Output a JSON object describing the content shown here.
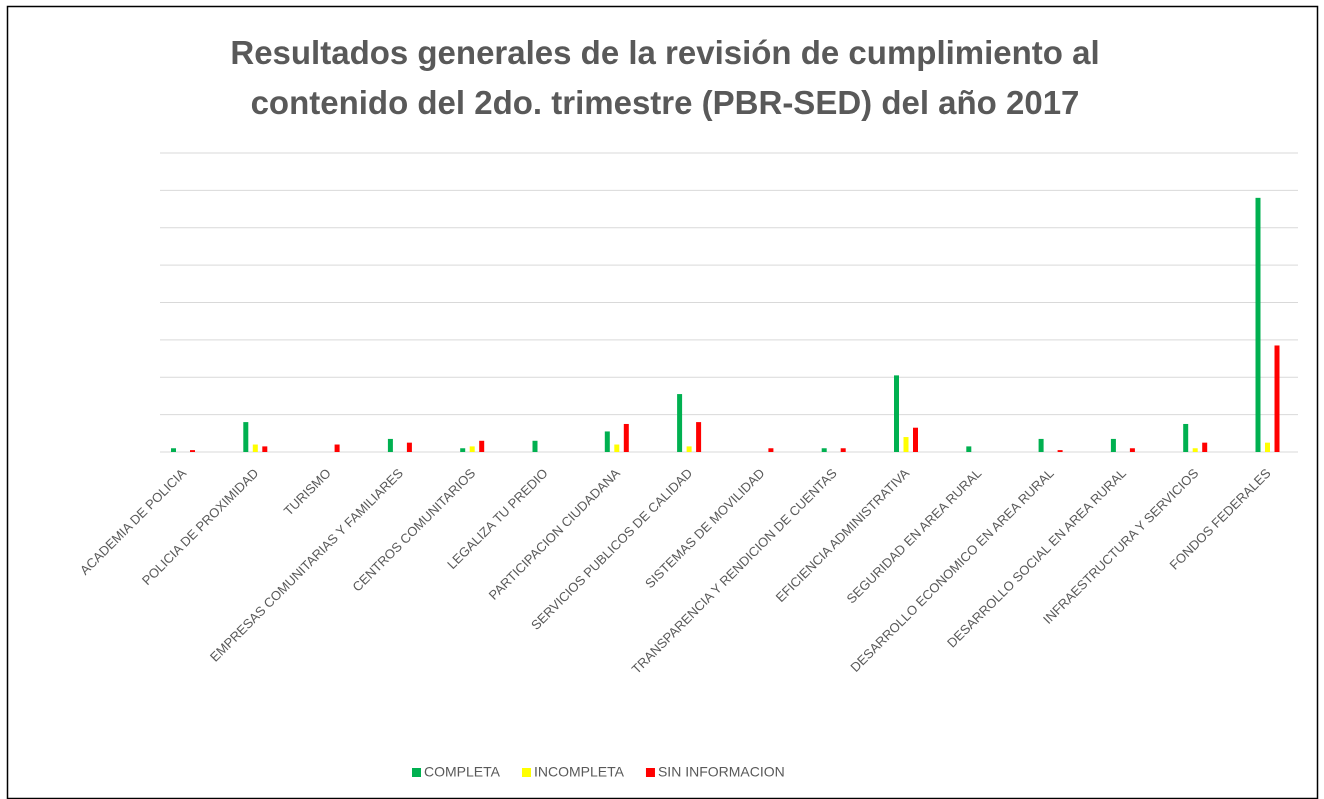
{
  "chart_data": {
    "type": "bar",
    "title": [
      "Resultados generales de la revisión de cumplimiento al",
      "contenido del 2do. trimestre (PBR-SED) del año 2017"
    ],
    "categories": [
      "ACADEMIA DE POLICIA",
      "POLICIA DE PROXIMIDAD",
      "TURISMO",
      "EMPRESAS COMUNITARIAS Y FAMILIARES",
      "CENTROS COMUNITARIOS",
      "LEGALIZA TU PREDIO",
      "PARTICIPACION CIUDADANA",
      "SERVICIOS PUBLICOS DE CALIDAD",
      "SISTEMAS DE MOVILIDAD",
      "TRANSPARENCIA Y RENDICION DE CUENTAS",
      "EFICIENCIA ADMINISTRATIVA",
      "SEGURIDAD EN AREA RURAL",
      "DESARROLLO ECONOMICO EN AREA RURAL",
      "DESARROLLO SOCIAL EN AREA RURAL",
      "INFRAESTRUCTURA Y SERVICIOS",
      "FONDOS FEDERALES"
    ],
    "series": [
      {
        "name": "COMPLETA",
        "color": "#00b050",
        "values": [
          1,
          8,
          0,
          3.5,
          1,
          3,
          5.5,
          15.5,
          0,
          1,
          20.5,
          1.5,
          3.5,
          3.5,
          7.5,
          68
        ]
      },
      {
        "name": "INCOMPLETA",
        "color": "#ffff00",
        "values": [
          0,
          2,
          0,
          0,
          1.5,
          0,
          2,
          1.5,
          0,
          0,
          4,
          0,
          0,
          0,
          1,
          2.5
        ]
      },
      {
        "name": "SIN INFORMACION",
        "color": "#ff0000",
        "values": [
          0.5,
          1.5,
          2,
          2.5,
          3,
          0,
          7.5,
          8,
          1,
          1,
          6.5,
          0,
          0.5,
          1,
          2.5,
          28.5
        ]
      }
    ],
    "ylim": [
      0,
      80
    ],
    "yticks": [
      0,
      10,
      20,
      30,
      40,
      50,
      60,
      70,
      80
    ],
    "grid": true,
    "legend": "bottom"
  }
}
